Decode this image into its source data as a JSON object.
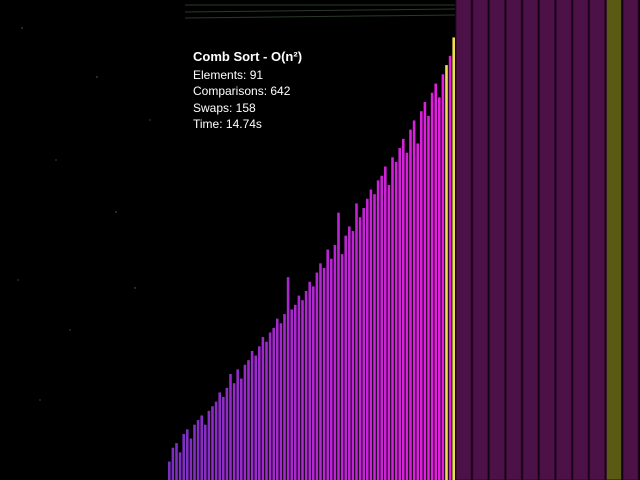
{
  "overlay": {
    "title": "Comb Sort - O(n²)",
    "lines": [
      "Elements: 91",
      "Comparisons: 642",
      "Swaps: 158",
      "Time: 14.74s"
    ]
  },
  "bars": {
    "values": [
      4,
      7,
      8,
      6,
      10,
      11,
      9,
      12,
      13,
      14,
      12,
      15,
      16,
      17,
      19,
      18,
      20,
      23,
      21,
      24,
      22,
      25,
      26,
      28,
      27,
      29,
      31,
      30,
      32,
      33,
      35,
      34,
      36,
      44,
      37,
      38,
      40,
      39,
      41,
      43,
      42,
      45,
      47,
      46,
      50,
      48,
      51,
      58,
      49,
      53,
      55,
      54,
      60,
      57,
      59,
      61,
      63,
      62,
      65,
      66,
      68,
      64,
      70,
      69,
      72,
      74,
      71,
      76,
      78,
      73,
      80,
      82,
      79,
      84,
      86,
      83,
      88,
      90,
      92,
      96,
      100,
      100,
      100,
      100,
      100,
      100,
      100,
      100,
      100,
      100,
      100
    ],
    "max": 100,
    "highlight": [
      77,
      79,
      89
    ],
    "color_low": "#7a2fc0",
    "color_high": "#e81ee0",
    "highlight_color": "#f0e050",
    "sorted_color": "#4c1248",
    "sorted_highlight_color": "#5a5a14"
  }
}
